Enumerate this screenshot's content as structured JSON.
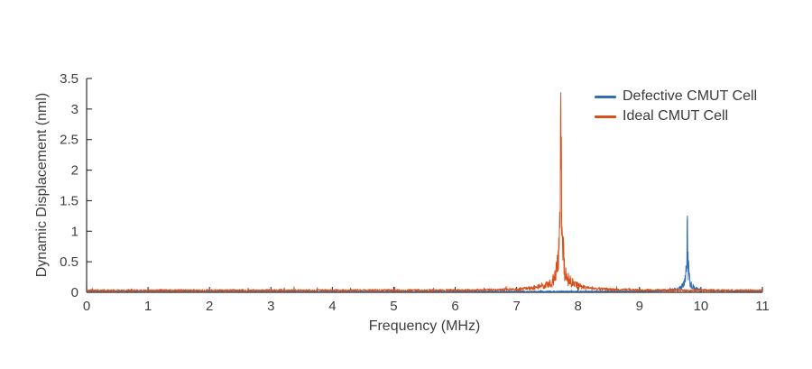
{
  "chart_data": {
    "type": "line",
    "title": "",
    "xlabel": "Frequency (MHz)",
    "ylabel": "Dynamic Displacement (nml)",
    "xlim": [
      0,
      11
    ],
    "ylim": [
      0,
      3.5
    ],
    "xticks": [
      0,
      1,
      2,
      3,
      4,
      5,
      6,
      7,
      8,
      9,
      10,
      11
    ],
    "yticks": [
      0,
      0.5,
      1,
      1.5,
      2,
      2.5,
      3,
      3.5
    ],
    "grid": false,
    "legend_position": "top-right",
    "axis_color": "#2e2e2e",
    "tick_label_color": "#3e3e3e",
    "samples_per_series": 2300,
    "series": [
      {
        "name": "Defective CMUT Cell",
        "color": "#336db4",
        "noise_floor": 0.016,
        "seed": 1013,
        "peak": {
          "center": 9.78,
          "peak_value": 1.25,
          "core_halfwidth": 0.008,
          "shoulder_height": 0.28,
          "shoulder_halfwidth": 0.045,
          "skirt_height": 0.05,
          "skirt_halfwidth": 0.28
        }
      },
      {
        "name": "Ideal CMUT Cell",
        "color": "#d5521d",
        "noise_floor": 0.034,
        "seed": 2027,
        "peak": {
          "center": 7.72,
          "peak_value": 3.27,
          "core_halfwidth": 0.009,
          "shoulder_height": 0.85,
          "shoulder_halfwidth": 0.05,
          "skirt_height": 0.15,
          "skirt_halfwidth": 0.32
        }
      }
    ]
  }
}
